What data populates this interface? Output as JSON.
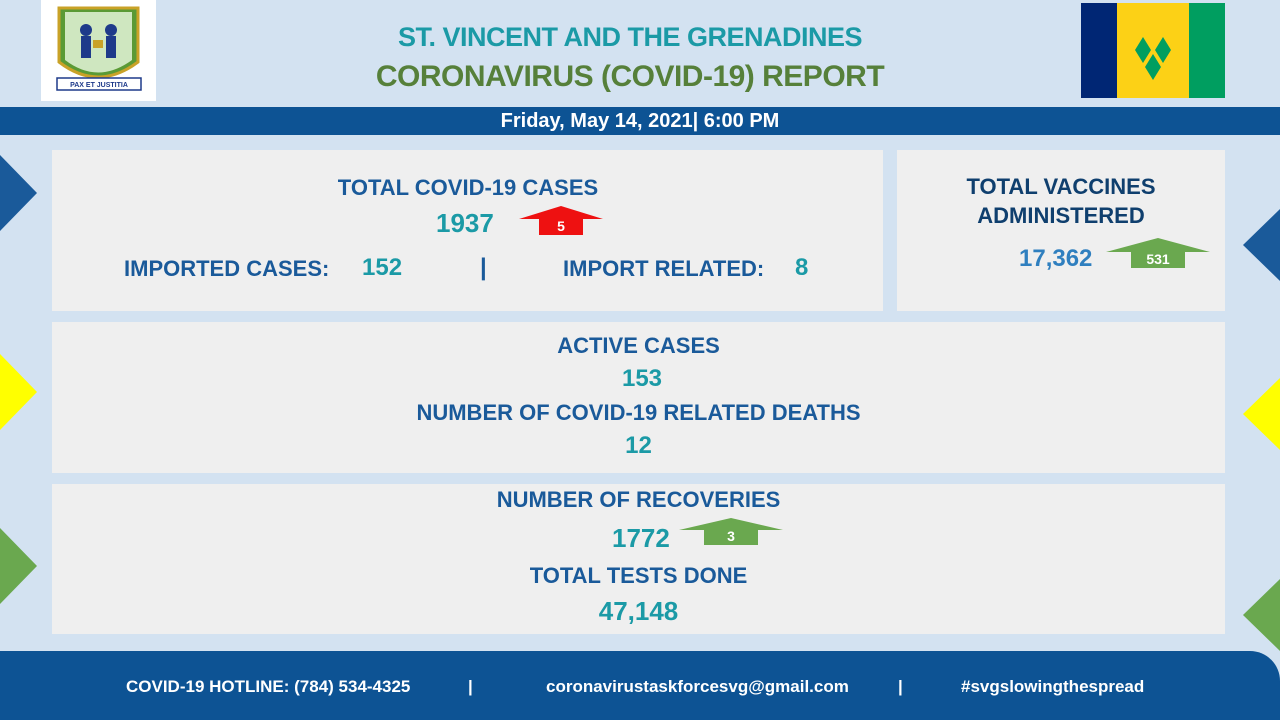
{
  "header": {
    "title_line1": "ST. VINCENT AND THE GRENADINES",
    "title_line2": "CORONAVIRUS (COVID-19) REPORT",
    "date": "Friday, May 14, 2021| 6:00 PM",
    "coat_of_arms_motto": "PAX ET JUSTITIA"
  },
  "total_cases": {
    "label": "TOTAL COVID-19 CASES",
    "value": "1937",
    "change": "5",
    "imported_label": "IMPORTED CASES:",
    "imported_value": "152",
    "separator": "|",
    "import_related_label": "IMPORT RELATED:",
    "import_related_value": "8"
  },
  "vaccines": {
    "label_line1": "TOTAL VACCINES",
    "label_line2": "ADMINISTERED",
    "value": "17,362",
    "change": "531"
  },
  "active": {
    "label": "ACTIVE CASES",
    "value": "153",
    "deaths_label": "NUMBER OF COVID-19 RELATED DEATHS",
    "deaths_value": "12"
  },
  "recoveries": {
    "label": "NUMBER OF RECOVERIES",
    "value": "1772",
    "change": "3",
    "tests_label": "TOTAL TESTS DONE",
    "tests_value": "47,148"
  },
  "footer": {
    "hotline": "COVID-19 HOTLINE: (784) 534-4325",
    "sep": "|",
    "email": "coronavirustaskforcesvg@gmail.com",
    "hashtag": "#svgslowingthespread"
  },
  "colors": {
    "navy": "#1a5a9a",
    "teal": "#1b9aa6",
    "green_title": "#56803a",
    "red_arrow": "#ee1111",
    "green_arrow": "#6aa84f",
    "flag_blue": "#002674",
    "flag_yellow": "#fcd116",
    "flag_green": "#009e60"
  }
}
